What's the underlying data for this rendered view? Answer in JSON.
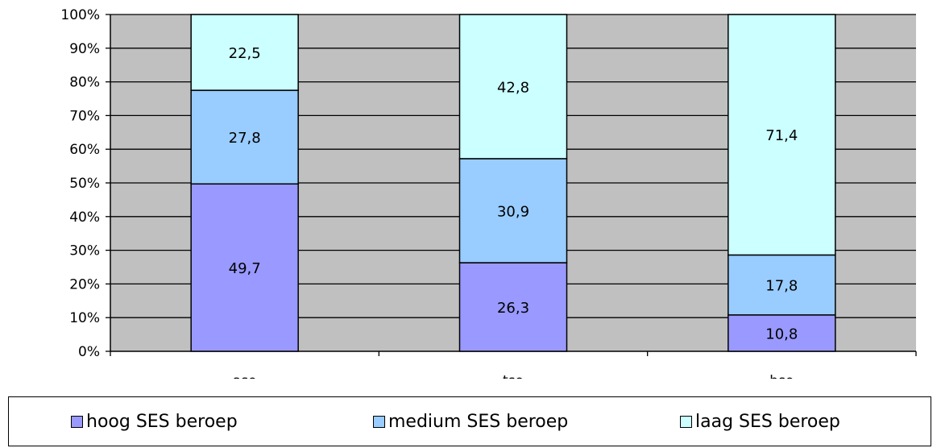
{
  "chart_data": {
    "type": "bar",
    "stacked": true,
    "percent_stacked": true,
    "categories": [
      "aso",
      "tso",
      "bso"
    ],
    "series": [
      {
        "name": "hoog SES beroep",
        "values": [
          49.7,
          26.3,
          10.8
        ],
        "color": "#9999ff"
      },
      {
        "name": "medium SES beroep",
        "values": [
          27.8,
          30.9,
          17.8
        ],
        "color": "#99ccff"
      },
      {
        "name": "laag SES beroep",
        "values": [
          22.5,
          42.8,
          71.4
        ],
        "color": "#ccffff"
      }
    ],
    "value_labels": {
      "hoog SES beroep": [
        "49,7",
        "26,3",
        "10,8"
      ],
      "medium SES beroep": [
        "27,8",
        "30,9",
        "17,8"
      ],
      "laag SES beroep": [
        "22,5",
        "42,8",
        "71,4"
      ]
    },
    "y_ticks": [
      "0%",
      "10%",
      "20%",
      "30%",
      "40%",
      "50%",
      "60%",
      "70%",
      "80%",
      "90%",
      "100%"
    ],
    "ylim": [
      0,
      100
    ],
    "title": "",
    "xlabel": "",
    "ylabel": "",
    "grid": true,
    "plot_background": "#c0c0c0",
    "legend_position": "bottom"
  }
}
